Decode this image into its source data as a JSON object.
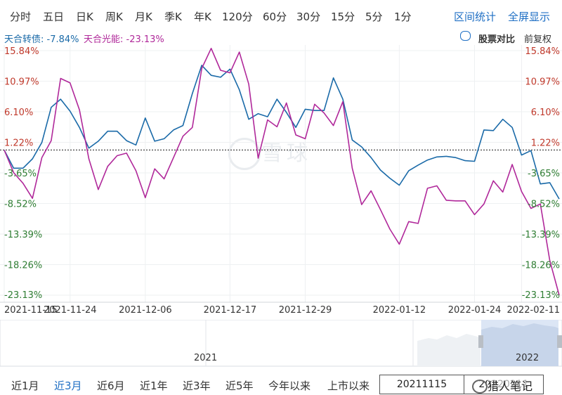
{
  "toolbar": {
    "period_tabs": [
      "分时",
      "五日",
      "日K",
      "周K",
      "月K",
      "季K",
      "年K",
      "120分",
      "60分",
      "30分",
      "15分",
      "5分",
      "1分"
    ],
    "interval_stats": "区间统计",
    "fullscreen": "全屏显示"
  },
  "legend": {
    "series1_label": "天合转债: -7.84%",
    "series2_label": "天合光能: -23.13%",
    "compare_label": "股票对比",
    "adjust_label": "前复权"
  },
  "colors": {
    "series1": "#1a6aa8",
    "series2": "#b0289a",
    "positive": "#c0392b",
    "negative": "#2e7d32",
    "neutral": "#c0392b",
    "accent": "#1f6fc4"
  },
  "watermark": {
    "text": "雪球"
  },
  "navigator": {
    "year_left": "2021",
    "year_right": "2022"
  },
  "ranges": {
    "items": [
      "近1月",
      "近3月",
      "近6月",
      "近1年",
      "近3年",
      "近5年",
      "今年以来",
      "上市以来"
    ],
    "active_index": 1,
    "start_date": "20211115",
    "end_date": "20220211"
  },
  "footer_brand": "猎人笔记",
  "chart_data": {
    "type": "line",
    "title": "",
    "y_ticks": [
      "15.84%",
      "10.97%",
      "6.10%",
      "1.22%",
      "-3.65%",
      "-8.52%",
      "-13.39%",
      "-18.26%",
      "-23.13%"
    ],
    "y_tick_values": [
      15.84,
      10.97,
      6.1,
      1.22,
      -3.65,
      -8.52,
      -13.39,
      -18.26,
      -23.13
    ],
    "ylim": [
      -23.13,
      15.84
    ],
    "baseline": 0,
    "x_ticks": [
      {
        "label": "2021-11-15",
        "index": 0
      },
      {
        "label": "2021-11-24",
        "index": 7
      },
      {
        "label": "2021-12-06",
        "index": 15
      },
      {
        "label": "2021-12-17",
        "index": 24
      },
      {
        "label": "2021-12-29",
        "index": 32
      },
      {
        "label": "2022-01-12",
        "index": 42
      },
      {
        "label": "2022-01-24",
        "index": 50
      },
      {
        "label": "2022-02-11",
        "index": 55
      }
    ],
    "series": [
      {
        "name": "天合转债",
        "values": [
          0.0,
          -2.9,
          -2.9,
          -1.4,
          1.2,
          6.8,
          8.1,
          6.2,
          3.6,
          0.3,
          1.4,
          3.0,
          3.0,
          1.5,
          0.8,
          5.1,
          1.4,
          1.8,
          3.2,
          3.9,
          9.0,
          13.5,
          11.9,
          11.6,
          12.9,
          9.6,
          4.9,
          5.8,
          5.3,
          8.1,
          6.0,
          3.6,
          6.5,
          6.3,
          6.3,
          11.5,
          8.1,
          1.6,
          0.5,
          -1.2,
          -3.2,
          -4.5,
          -5.6,
          -3.3,
          -2.4,
          -1.6,
          -1.1,
          -1.0,
          -1.2,
          -1.7,
          -1.8,
          3.2,
          3.1,
          4.9,
          3.6,
          -0.8,
          -0.1,
          -5.4,
          -5.2,
          -7.8
        ]
      },
      {
        "name": "天合光能",
        "values": [
          0.0,
          -3.6,
          -5.3,
          -7.7,
          -1.2,
          1.5,
          11.4,
          10.7,
          6.4,
          -1.4,
          -6.3,
          -2.6,
          -0.9,
          -0.5,
          -3.3,
          -7.6,
          -3.0,
          -4.6,
          -1.2,
          2.2,
          3.6,
          13.0,
          16.2,
          12.7,
          12.3,
          15.6,
          10.5,
          -1.3,
          4.8,
          3.7,
          7.5,
          2.4,
          1.8,
          7.3,
          5.9,
          3.9,
          7.7,
          -2.9,
          -8.7,
          -6.5,
          -9.5,
          -12.6,
          -15.0,
          -11.4,
          -11.7,
          -6.1,
          -5.7,
          -8.0,
          -8.1,
          -8.1,
          -10.3,
          -8.6,
          -4.9,
          -6.7,
          -2.3,
          -6.6,
          -9.3,
          -8.6,
          -17.6,
          -23.13
        ]
      }
    ]
  }
}
